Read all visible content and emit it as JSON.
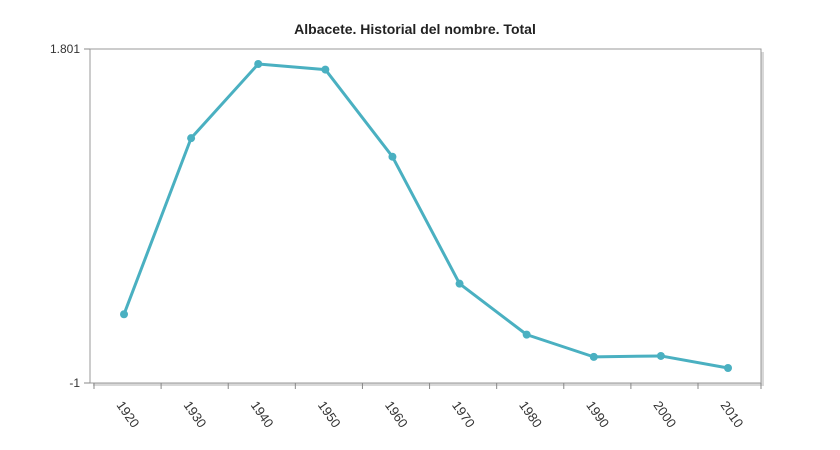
{
  "chart_data": {
    "type": "line",
    "title": "Albacete. Historial del nombre. Total",
    "xlabel": "",
    "ylabel": "",
    "ylim": [
      -1,
      1801
    ],
    "y_tick_labels": [
      "1.801",
      "-1"
    ],
    "categories": [
      "1920",
      "1930",
      "1940",
      "1950",
      "1960",
      "1970",
      "1980",
      "1990",
      "2000",
      "2010"
    ],
    "series": [
      {
        "values": [
          370,
          1320,
          1720,
          1690,
          1220,
          535,
          260,
          140,
          145,
          80
        ]
      }
    ],
    "grid": false,
    "legend": "none",
    "colors": {
      "line": "#4ab0c1",
      "frame": "#999999",
      "shadow": "#d0d0d0"
    }
  }
}
